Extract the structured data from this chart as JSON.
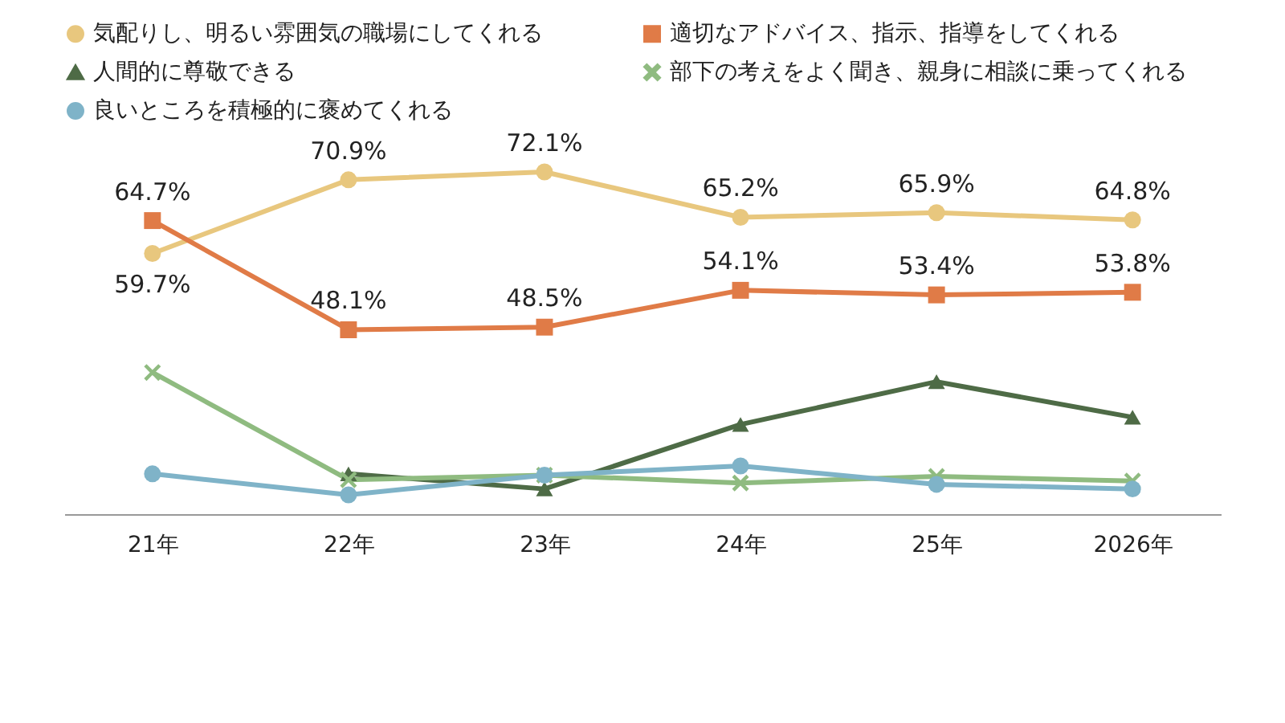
{
  "chart_data": {
    "type": "line",
    "categories": [
      "21年",
      "22年",
      "23年",
      "24年",
      "25年",
      "2026年"
    ],
    "legend": "top",
    "grid": false,
    "tick_labels": "x",
    "series": [
      {
        "name": "気配りし、明るい雰囲気の職場にしてくれる",
        "color": "#e8c77e",
        "marker": "circle",
        "values": [
          59.7,
          70.9,
          72.1,
          65.2,
          65.9,
          64.8
        ],
        "value_labels": [
          "59.7%",
          "70.9%",
          "72.1%",
          "65.2%",
          "65.9%",
          "64.8%"
        ]
      },
      {
        "name": "適切なアドバイス、指示、指導をしてくれる",
        "color": "#e07b47",
        "marker": "square",
        "values": [
          64.7,
          48.1,
          48.5,
          54.1,
          53.4,
          53.8
        ],
        "value_labels": [
          "64.7%",
          "48.1%",
          "48.5%",
          "54.1%",
          "53.4%",
          "53.8%"
        ]
      },
      {
        "name": "人間的に尊敬できる",
        "color": "#4e6b46",
        "marker": "triangle",
        "values": [
          null,
          26.2,
          23.9,
          33.7,
          40.2,
          34.8
        ]
      },
      {
        "name": "部下の考えをよく聞き、親身に相談に乗ってくれる",
        "color": "#8fbb80",
        "marker": "cross",
        "values": [
          41.6,
          25.3,
          26.0,
          24.8,
          25.8,
          25.1
        ]
      },
      {
        "name": "良いところを積極的に褒めてくれる",
        "color": "#7fb3c8",
        "marker": "circle",
        "values": [
          26.2,
          23.0,
          26.0,
          27.4,
          24.6,
          23.9
        ]
      }
    ]
  }
}
